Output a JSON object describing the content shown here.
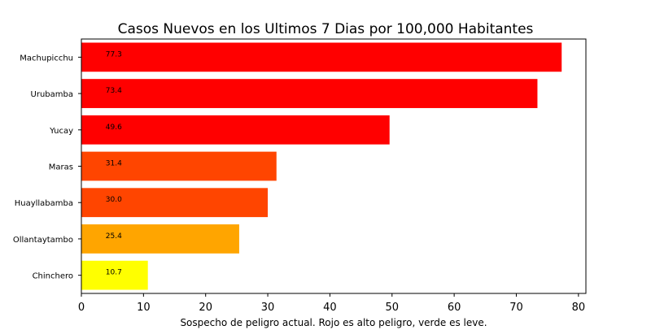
{
  "chart_data": {
    "type": "bar",
    "orientation": "horizontal",
    "title": "Casos Nuevos en los Ultimos 7 Dias por 100,000 Habitantes",
    "xlabel": "Sospecho de peligro actual. Rojo es alto peligro, verde es leve.",
    "ylabel": "",
    "categories": [
      "Machupicchu",
      "Urubamba",
      "Yucay",
      "Maras",
      "Huayllabamba",
      "Ollantaytambo",
      "Chinchero"
    ],
    "values": [
      77.3,
      73.4,
      49.6,
      31.4,
      30.0,
      25.4,
      10.7
    ],
    "labels": [
      "77.3",
      "73.4",
      "49.6",
      "31.4",
      "30.0",
      "25.4",
      "10.7"
    ],
    "colors": [
      "#ff0000",
      "#ff0000",
      "#ff0000",
      "#ff4500",
      "#ff4500",
      "#ffa500",
      "#ffff00"
    ],
    "xlim": [
      0,
      81.2
    ],
    "xticks": [
      0,
      10,
      20,
      30,
      40,
      50,
      60,
      70,
      80
    ],
    "grid": false,
    "legend": "none"
  }
}
